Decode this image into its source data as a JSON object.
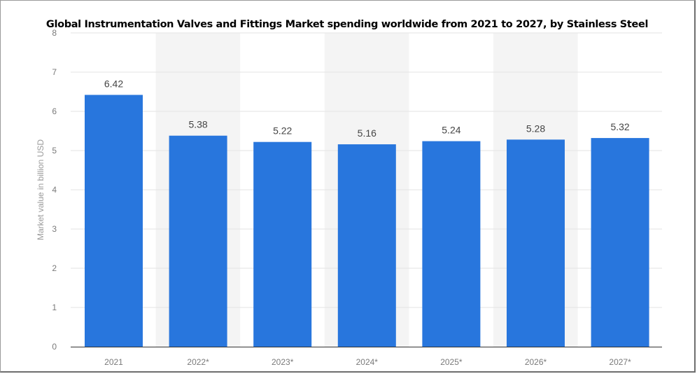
{
  "chart_data": {
    "type": "bar",
    "title": "Global Instrumentation Valves and Fittings Market spending worldwide from 2021 to 2027, by Stainless Steel",
    "xlabel": "",
    "ylabel": "Market value in billion USD",
    "categories": [
      "2021",
      "2022*",
      "2023*",
      "2024*",
      "2025*",
      "2026*",
      "2027*"
    ],
    "values": [
      6.42,
      5.38,
      5.22,
      5.16,
      5.24,
      5.28,
      5.32
    ],
    "value_labels": [
      "6.42",
      "5.38",
      "5.22",
      "5.16",
      "5.24",
      "5.28",
      "5.32"
    ],
    "ylim": [
      0,
      8
    ],
    "yticks": [
      "0",
      "1",
      "2",
      "3",
      "4",
      "5",
      "6",
      "7",
      "8"
    ],
    "grid": true,
    "legend": "none",
    "colors": {
      "bar": "#2876dd",
      "band": "#f4f4f4",
      "grid": "#e3e3e3",
      "axis": "#333333"
    }
  }
}
